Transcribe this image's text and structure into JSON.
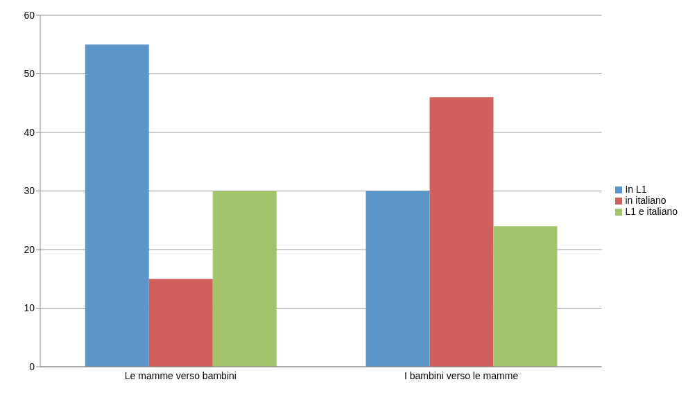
{
  "chart_data": {
    "type": "bar",
    "categories": [
      "Le mamme verso bambini",
      "I bambini verso le mamme"
    ],
    "series": [
      {
        "name": "In L1",
        "color": "#5b95c9",
        "values": [
          55,
          30
        ]
      },
      {
        "name": "in italiano",
        "color": "#d0605d",
        "values": [
          15,
          46
        ]
      },
      {
        "name": "L1 e italiano",
        "color": "#a3c46a",
        "values": [
          30,
          24
        ]
      }
    ],
    "ylim": [
      0,
      60
    ],
    "yticks": [
      0,
      10,
      20,
      30,
      40,
      50,
      60
    ],
    "grid": "y",
    "legend": "right"
  }
}
